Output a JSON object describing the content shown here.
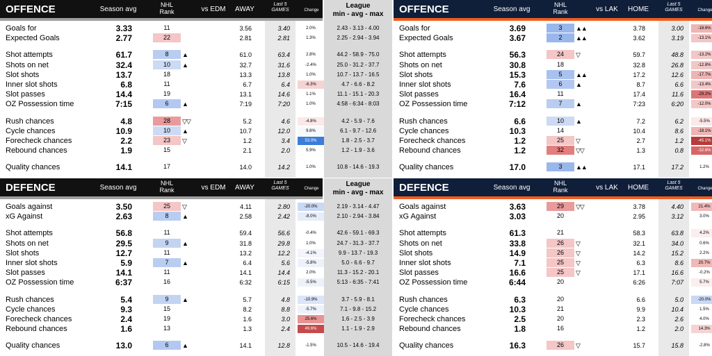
{
  "colors": {
    "left_stripe": "#9e9e9e",
    "right_stripe": "#f25c1f",
    "header_bg": "#111111",
    "right_header_bg": "#0f1f3a",
    "last5_shade": "#e9e9e9",
    "league_shade": "#d9d9d9"
  },
  "headers": {
    "left_off": {
      "title": "OFFENCE",
      "season": "Season avg",
      "rank_line1": "NHL",
      "rank_line2": "Rank",
      "vs": "vs EDM",
      "loc": "AWAY",
      "last5_1": "Last 5",
      "last5_2": "GAMES",
      "change": "Change",
      "league_1": "League",
      "league_2": "min - avg - max"
    },
    "right_off": {
      "title": "OFFENCE",
      "season": "Season avg",
      "rank_line1": "NHL",
      "rank_line2": "Rank",
      "vs": "vs LAK",
      "loc": "HOME",
      "last5_1": "Last 5",
      "last5_2": "GAMES",
      "change": "Change"
    },
    "left_def": {
      "title": "DEFENCE",
      "season": "Season avg",
      "rank_line1": "NHL",
      "rank_line2": "Rank",
      "vs": "vs EDM",
      "loc": "AWAY",
      "last5_1": "Last 5",
      "last5_2": "GAMES",
      "change": "Change",
      "league_1": "League",
      "league_2": "min - avg - max"
    },
    "right_def": {
      "title": "DEFENCE",
      "season": "Season avg",
      "rank_line1": "NHL",
      "rank_line2": "Rank",
      "vs": "vs LAK",
      "loc": "HOME",
      "last5_1": "Last 5",
      "last5_2": "GAMES",
      "change": "Change"
    }
  },
  "left_off": [
    {
      "label": "Goals for",
      "sa": "3.33",
      "rank": "11",
      "arrow": "",
      "vs": "3.56",
      "l5": "3.40",
      "ch": "2.0%",
      "lg": "2.43 - 3.13 - 4.00",
      "rc": "",
      "cc": ""
    },
    {
      "label": "Expected Goals",
      "sa": "2.77",
      "rank": "22",
      "arrow": "",
      "vs": "2.81",
      "l5": "2.81",
      "ch": "1.3%",
      "lg": "2.25 - 2.94 - 3.94",
      "rc": "#f4c6c6",
      "cc": ""
    },
    {
      "gap": 1
    },
    {
      "label": "Shot attempts",
      "sa": "61.7",
      "rank": "8",
      "arrow": "▲",
      "vs": "61.0",
      "l5": "63.4",
      "ch": "2.8%",
      "lg": "44.2 - 58.9 - 75.0",
      "rc": "#b9cdf1",
      "cc": ""
    },
    {
      "label": "Shots on net",
      "sa": "32.4",
      "rank": "10",
      "arrow": "▲",
      "vs": "32.7",
      "l5": "31.6",
      "ch": "-2.4%",
      "lg": "25.0 - 31.2 - 37.7",
      "rc": "#ccdaf4",
      "cc": ""
    },
    {
      "label": "Slot shots",
      "sa": "13.7",
      "rank": "18",
      "arrow": "",
      "vs": "13.3",
      "l5": "13.8",
      "ch": "1.0%",
      "lg": "10.7 - 13.7 - 16.5",
      "rc": "",
      "cc": ""
    },
    {
      "label": "Inner slot shots",
      "sa": "6.8",
      "rank": "11",
      "arrow": "",
      "vs": "6.7",
      "l5": "6.4",
      "ch": "-6.3%",
      "lg": "4.7 - 6.6 - 8.2",
      "rc": "",
      "cc": "#f6d3d3"
    },
    {
      "label": "Slot passes",
      "sa": "14.4",
      "rank": "19",
      "arrow": "",
      "vs": "13.1",
      "l5": "14.6",
      "ch": "1.1%",
      "lg": "11.1 - 15.1 - 20.3",
      "rc": "",
      "cc": ""
    },
    {
      "label": "OZ Possession time",
      "sa": "7:15",
      "rank": "6",
      "arrow": "▲",
      "vs": "7:19",
      "l5": "7:20",
      "ch": "1.0%",
      "lg": "4:58 - 6:34 - 8:03",
      "rc": "#b3c8f0",
      "cc": ""
    },
    {
      "gap": 1
    },
    {
      "label": "Rush chances",
      "sa": "4.8",
      "rank": "28",
      "arrow": "▽▽",
      "vs": "5.2",
      "l5": "4.6",
      "ch": "-4.8%",
      "lg": "4.2 - 5.9 - 7.6",
      "rc": "#e99a9a",
      "cc": "#fbe8e8"
    },
    {
      "label": "Cycle chances",
      "sa": "10.9",
      "rank": "10",
      "arrow": "▲",
      "vs": "10.7",
      "l5": "12.0",
      "ch": "9.6%",
      "lg": "6.1 - 9.7 - 12.6",
      "rc": "#ccdaf4",
      "cc": "#f6f8fc"
    },
    {
      "label": "Forecheck chances",
      "sa": "2.2",
      "rank": "23",
      "arrow": "▽",
      "vs": "1.2",
      "l5": "3.4",
      "ch": "53.0%",
      "lg": "1.8 - 2.5 - 3.7",
      "rc": "#f4c6c6",
      "cc": "#3b7dd8"
    },
    {
      "label": "Rebound chances",
      "sa": "1.9",
      "rank": "15",
      "arrow": "",
      "vs": "2.1",
      "l5": "2.0",
      "ch": "5.9%",
      "lg": "1.2 - 1.9 - 3.6",
      "rc": "",
      "cc": ""
    },
    {
      "gap": 1
    },
    {
      "label": "Quality chances",
      "sa": "14.1",
      "rank": "17",
      "arrow": "",
      "vs": "14.0",
      "l5": "14.2",
      "ch": "1.0%",
      "lg": "10.8 - 14.6 - 19.3",
      "rc": "",
      "cc": ""
    }
  ],
  "right_off": [
    {
      "label": "Goals for",
      "sa": "3.69",
      "rank": "3",
      "arrow": "▲▲",
      "vs": "3.78",
      "l5": "3.00",
      "ch": "-18.6%",
      "rc": "#9ab7ec",
      "cc": "#efb4b4"
    },
    {
      "label": "Expected Goals",
      "sa": "3.67",
      "rank": "2",
      "arrow": "▲▲",
      "vs": "3.62",
      "l5": "3.19",
      "ch": "-13.1%",
      "rc": "#9ab7ec",
      "cc": "#f3c7c7"
    },
    {
      "gap": 1
    },
    {
      "label": "Shot attempts",
      "sa": "56.3",
      "rank": "24",
      "arrow": "▽",
      "vs": "59.7",
      "l5": "48.8",
      "ch": "-13.2%",
      "rc": "#f4c6c6",
      "cc": "#f3c7c7"
    },
    {
      "label": "Shots on net",
      "sa": "30.8",
      "rank": "18",
      "arrow": "",
      "vs": "32.8",
      "l5": "26.8",
      "ch": "-12.8%",
      "rc": "",
      "cc": "#f3c7c7"
    },
    {
      "label": "Slot shots",
      "sa": "15.3",
      "rank": "5",
      "arrow": "▲▲",
      "vs": "17.2",
      "l5": "12.6",
      "ch": "-17.7%",
      "rc": "#a9c1ee",
      "cc": "#efb4b4"
    },
    {
      "label": "Inner slot shots",
      "sa": "7.6",
      "rank": "6",
      "arrow": "▲",
      "vs": "8.7",
      "l5": "6.6",
      "ch": "-13.4%",
      "rc": "#b3c8f0",
      "cc": "#f3c7c7"
    },
    {
      "label": "Slot passes",
      "sa": "16.4",
      "rank": "11",
      "arrow": "",
      "vs": "17.4",
      "l5": "11.6",
      "ch": "-29.2%",
      "rc": "",
      "cc": "#dd7777"
    },
    {
      "label": "OZ Possession time",
      "sa": "7:12",
      "rank": "7",
      "arrow": "▲",
      "vs": "7:23",
      "l5": "6:20",
      "ch": "-12.0%",
      "rc": "#b9cdf1",
      "cc": "#f3c7c7"
    },
    {
      "gap": 1
    },
    {
      "label": "Rush chances",
      "sa": "6.6",
      "rank": "10",
      "arrow": "▲",
      "vs": "7.2",
      "l5": "6.2",
      "ch": "-5.5%",
      "rc": "#ccdaf4",
      "cc": "#fbe8e8"
    },
    {
      "label": "Cycle chances",
      "sa": "10.3",
      "rank": "14",
      "arrow": "",
      "vs": "10.4",
      "l5": "8.6",
      "ch": "-18.1%",
      "rc": "",
      "cc": "#efb4b4"
    },
    {
      "label": "Forecheck chances",
      "sa": "1.2",
      "rank": "25",
      "arrow": "▽",
      "vs": "2.7",
      "l5": "1.2",
      "ch": "-45.1%",
      "rc": "#f4c6c6",
      "cc": "#b83a3a"
    },
    {
      "label": "Rebound chances",
      "sa": "1.2",
      "rank": "32",
      "arrow": "▽▽",
      "vs": "1.3",
      "l5": "0.8",
      "ch": "-32.6%",
      "rc": "#e17f7f",
      "cc": "#d66666"
    },
    {
      "gap": 1
    },
    {
      "label": "Quality chances",
      "sa": "17.0",
      "rank": "3",
      "arrow": "▲▲",
      "vs": "17.1",
      "l5": "17.2",
      "ch": "1.2%",
      "rc": "#9ab7ec",
      "cc": ""
    }
  ],
  "left_def": [
    {
      "label": "Goals against",
      "sa": "3.50",
      "rank": "25",
      "arrow": "▽",
      "vs": "4.11",
      "l5": "2.80",
      "ch": "-20.0%",
      "lg": "2.19 - 3.14 - 4.47",
      "rc": "#f4c6c6",
      "cc": "#c9d8f4"
    },
    {
      "label": "xG Against",
      "sa": "2.63",
      "rank": "8",
      "arrow": "▲",
      "vs": "2.58",
      "l5": "2.42",
      "ch": "-8.0%",
      "lg": "2.10 - 2.94 - 3.84",
      "rc": "#b9cdf1",
      "cc": "#e6edf9"
    },
    {
      "gap": 1
    },
    {
      "label": "Shot attempts",
      "sa": "56.8",
      "rank": "11",
      "arrow": "",
      "vs": "59.4",
      "l5": "56.6",
      "ch": "-0.4%",
      "lg": "42.6 - 59.1 - 69.3",
      "rc": "",
      "cc": ""
    },
    {
      "label": "Shots on net",
      "sa": "29.5",
      "rank": "9",
      "arrow": "▲",
      "vs": "31.8",
      "l5": "29.8",
      "ch": "1.0%",
      "lg": "24.7 - 31.3 - 37.7",
      "rc": "#c3d4f3",
      "cc": ""
    },
    {
      "label": "Slot shots",
      "sa": "12.7",
      "rank": "11",
      "arrow": "",
      "vs": "13.2",
      "l5": "12.2",
      "ch": "-4.1%",
      "lg": "9.9 - 13.7 - 19.3",
      "rc": "",
      "cc": "#f2f5fb"
    },
    {
      "label": "Inner slot shots",
      "sa": "5.9",
      "rank": "7",
      "arrow": "▲",
      "vs": "6.4",
      "l5": "5.6",
      "ch": "-5.8%",
      "lg": "5.0 - 6.6 - 9.7",
      "rc": "#b9cdf1",
      "cc": "#edf2fa"
    },
    {
      "label": "Slot passes",
      "sa": "14.1",
      "rank": "11",
      "arrow": "",
      "vs": "14.1",
      "l5": "14.4",
      "ch": "2.0%",
      "lg": "11.3 - 15.2 - 20.1",
      "rc": "",
      "cc": ""
    },
    {
      "label": "OZ Possession time",
      "sa": "6:37",
      "rank": "16",
      "arrow": "",
      "vs": "6:32",
      "l5": "6:15",
      "ch": "-5.5%",
      "lg": "5:13 - 6:35 - 7:41",
      "rc": "",
      "cc": "#edf2fa"
    },
    {
      "gap": 1
    },
    {
      "label": "Rush chances",
      "sa": "5.4",
      "rank": "9",
      "arrow": "▲",
      "vs": "5.7",
      "l5": "4.8",
      "ch": "-10.9%",
      "lg": "3.7 - 5.9 - 8.1",
      "rc": "#c3d4f3",
      "cc": "#dbe5f7"
    },
    {
      "label": "Cycle chances",
      "sa": "9.3",
      "rank": "15",
      "arrow": "",
      "vs": "8.2",
      "l5": "8.8",
      "ch": "-5.7%",
      "lg": "7.1 - 9.8 - 15.2",
      "rc": "",
      "cc": "#edf2fa"
    },
    {
      "label": "Forecheck chances",
      "sa": "2.4",
      "rank": "19",
      "arrow": "",
      "vs": "1.6",
      "l5": "3.0",
      "ch": "25.6%",
      "lg": "1.6 - 2.5 - 3.9",
      "rc": "",
      "cc": "#e89494"
    },
    {
      "label": "Rebound chances",
      "sa": "1.6",
      "rank": "13",
      "arrow": "",
      "vs": "1.3",
      "l5": "2.4",
      "ch": "49.6%",
      "lg": "1.1 - 1.9 - 2.9",
      "rc": "",
      "cc": "#c54a4a"
    },
    {
      "gap": 1
    },
    {
      "label": "Quality chances",
      "sa": "13.0",
      "rank": "6",
      "arrow": "▲",
      "vs": "14.1",
      "l5": "12.8",
      "ch": "-1.5%",
      "lg": "10.5 - 14.6 - 19.4",
      "rc": "#b3c8f0",
      "cc": ""
    }
  ],
  "right_def": [
    {
      "label": "Goals against",
      "sa": "3.63",
      "rank": "29",
      "arrow": "▽▽",
      "vs": "3.78",
      "l5": "4.40",
      "ch": "21.4%",
      "rc": "#e99a9a",
      "cc": "#f0b8b8"
    },
    {
      "label": "xG Against",
      "sa": "3.03",
      "rank": "20",
      "arrow": "",
      "vs": "2.95",
      "l5": "3.12",
      "ch": "3.0%",
      "rc": "",
      "cc": ""
    },
    {
      "gap": 1
    },
    {
      "label": "Shot attempts",
      "sa": "61.3",
      "rank": "21",
      "arrow": "",
      "vs": "58.3",
      "l5": "63.8",
      "ch": "4.2%",
      "rc": "",
      "cc": "#fbeeee"
    },
    {
      "label": "Shots on net",
      "sa": "33.8",
      "rank": "26",
      "arrow": "▽",
      "vs": "32.1",
      "l5": "34.0",
      "ch": "0.6%",
      "rc": "#f4c6c6",
      "cc": ""
    },
    {
      "label": "Slot shots",
      "sa": "14.9",
      "rank": "26",
      "arrow": "▽",
      "vs": "14.2",
      "l5": "15.2",
      "ch": "2.2%",
      "rc": "#f4c6c6",
      "cc": ""
    },
    {
      "label": "Inner slot shots",
      "sa": "7.1",
      "rank": "25",
      "arrow": "▽",
      "vs": "6.3",
      "l5": "8.6",
      "ch": "20.7%",
      "rc": "#f4c6c6",
      "cc": "#f0b8b8"
    },
    {
      "label": "Slot passes",
      "sa": "16.6",
      "rank": "25",
      "arrow": "▽",
      "vs": "17.1",
      "l5": "16.6",
      "ch": "-0.2%",
      "rc": "#f4c6c6",
      "cc": ""
    },
    {
      "label": "OZ Possession time",
      "sa": "6:44",
      "rank": "20",
      "arrow": "",
      "vs": "6:26",
      "l5": "7:07",
      "ch": "5.7%",
      "rc": "",
      "cc": "#fbeeee"
    },
    {
      "gap": 1
    },
    {
      "label": "Rush chances",
      "sa": "6.3",
      "rank": "20",
      "arrow": "",
      "vs": "6.6",
      "l5": "5.0",
      "ch": "-20.0%",
      "rc": "",
      "cc": "#c9d8f4"
    },
    {
      "label": "Cycle chances",
      "sa": "10.3",
      "rank": "21",
      "arrow": "",
      "vs": "9.9",
      "l5": "10.4",
      "ch": "1.5%",
      "rc": "",
      "cc": ""
    },
    {
      "label": "Forecheck chances",
      "sa": "2.5",
      "rank": "20",
      "arrow": "",
      "vs": "2.3",
      "l5": "2.6",
      "ch": "4.0%",
      "rc": "",
      "cc": ""
    },
    {
      "label": "Rebound chances",
      "sa": "1.8",
      "rank": "16",
      "arrow": "",
      "vs": "1.2",
      "l5": "2.0",
      "ch": "14.3%",
      "rc": "",
      "cc": "#f6d3d3"
    },
    {
      "gap": 1
    },
    {
      "label": "Quality chances",
      "sa": "16.3",
      "rank": "26",
      "arrow": "▽",
      "vs": "15.7",
      "l5": "15.8",
      "ch": "-2.8%",
      "rc": "#f4c6c6",
      "cc": ""
    }
  ]
}
